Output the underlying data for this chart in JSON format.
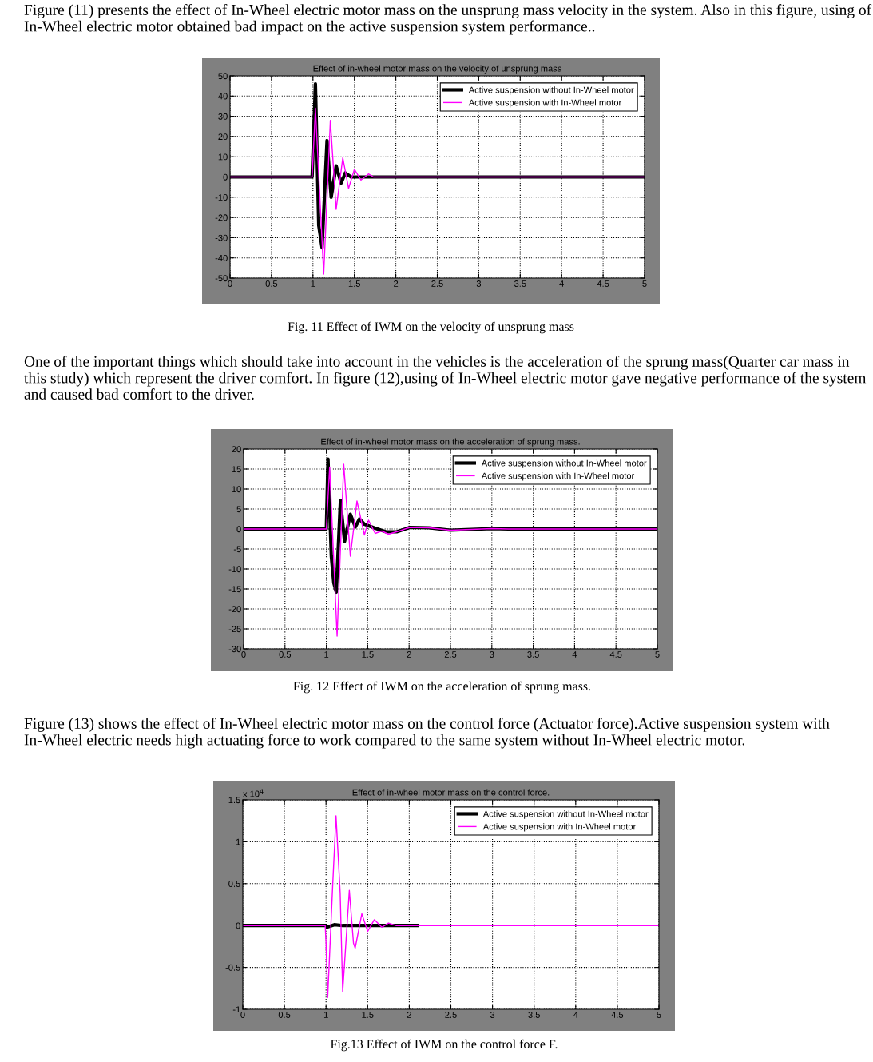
{
  "chart_data": [
    {
      "type": "line",
      "title": "Effect of in-wheel motor mass on the velocity of unsprung mass",
      "annotations": [
        "Figure (11) presents the effect of In-Wheel electric motor mass on the unsprung mass velocity in the system. Also in this figure, using of In-Wheel electric motor obtained bad impact on the active suspension system performance..",
        "Fig. 11 Effect of IWM on the velocity of unsprung mass"
      ],
      "xlim": [
        0,
        5
      ],
      "xticks": [
        0,
        0.5,
        1,
        1.5,
        2,
        2.5,
        3,
        3.5,
        4,
        4.5,
        5
      ],
      "ylim": [
        -50,
        50
      ],
      "yticks": [
        -50,
        -40,
        -30,
        -20,
        -10,
        0,
        10,
        20,
        30,
        40,
        50
      ],
      "grid": true,
      "legend": "top right",
      "line_style": "solid",
      "marker": "none",
      "series": [
        {
          "name": "Active suspension without In-Wheel motor",
          "color": "#000000",
          "x": [
            0,
            0.99,
            1.03,
            1.07,
            1.11,
            1.17,
            1.22,
            1.28,
            1.34,
            1.39,
            1.46,
            5
          ],
          "values": [
            0,
            0,
            46,
            -24,
            -35,
            18,
            -10,
            5.5,
            -3,
            2,
            0,
            0
          ]
        },
        {
          "name": "Active suspension with In-Wheel motor",
          "color": "#ff00ff",
          "x": [
            0,
            0.99,
            1.03,
            1.13,
            1.21,
            1.28,
            1.36,
            1.43,
            1.5,
            1.58,
            1.67,
            1.73,
            5
          ],
          "values": [
            0,
            0,
            34,
            -48,
            28,
            -16,
            9.5,
            -5.7,
            3.8,
            -1.5,
            1.5,
            0,
            0
          ]
        }
      ]
    },
    {
      "type": "line",
      "title": "Effect of in-wheel motor mass on the acceleration of sprung mass.",
      "annotations": [
        "One of the important things which should take into account in the vehicles is the acceleration of the sprung mass(Quarter car mass in this study) which represent the driver comfort. In figure (12),using of In-Wheel electric motor gave negative performance of the system and caused bad comfort to the driver.",
        "Fig. 12 Effect of IWM on the acceleration of sprung mass."
      ],
      "xlim": [
        0,
        5
      ],
      "xticks": [
        0,
        0.5,
        1,
        1.5,
        2,
        2.5,
        3,
        3.5,
        4,
        4.5,
        5
      ],
      "ylim": [
        -30,
        20
      ],
      "yticks": [
        -30,
        -25,
        -20,
        -15,
        -10,
        -5,
        0,
        5,
        10,
        15,
        20
      ],
      "grid": true,
      "legend": "top right",
      "line_style": "solid",
      "marker": "none",
      "series": [
        {
          "name": "Active suspension without In-Wheel motor",
          "color": "#000000",
          "x": [
            0,
            1.0,
            1.02,
            1.06,
            1.09,
            1.12,
            1.17,
            1.22,
            1.29,
            1.35,
            1.4,
            1.46,
            1.59,
            1.72,
            1.85,
            2.01,
            2.24,
            2.5,
            3.0,
            3.2,
            5
          ],
          "values": [
            0,
            0,
            17.5,
            -6.8,
            -13.5,
            -15.8,
            7.2,
            -3.1,
            3.7,
            0.5,
            2.5,
            1.2,
            0.2,
            -0.7,
            -0.7,
            0.4,
            0.3,
            -0.3,
            0.1,
            0,
            0
          ]
        },
        {
          "name": "Active suspension with In-Wheel motor",
          "color": "#ff00ff",
          "x": [
            0,
            1.0,
            1.04,
            1.13,
            1.21,
            1.29,
            1.37,
            1.46,
            1.51,
            1.59,
            1.67,
            1.75,
            1.88,
            2.01,
            2.24,
            2.5,
            3.0,
            3.2,
            5
          ],
          "values": [
            0,
            0,
            15.5,
            -26.8,
            16.2,
            -6.8,
            7,
            -1.5,
            2.2,
            -1.1,
            -0.5,
            -1.3,
            -0.5,
            0.4,
            0.3,
            -0.3,
            0.1,
            0,
            0
          ]
        }
      ]
    },
    {
      "type": "line",
      "title": "Effect of in-wheel motor mass on the control force.",
      "annotations": [
        "Figure (13) shows the effect of In-Wheel electric motor mass on the control force (Actuator force).Active suspension system with In-Wheel electric needs high actuating force to work compared to the same system without In-Wheel electric motor.",
        "Fig.13 Effect of IWM on the control force F.",
        "x 10$^{4}$"
      ],
      "xlim": [
        0,
        5
      ],
      "xticks": [
        0,
        0.5,
        1,
        1.5,
        2,
        2.5,
        3,
        3.5,
        4,
        4.5,
        5
      ],
      "ylim": [
        -1,
        1.5
      ],
      "yticks": [
        -1,
        -0.5,
        0,
        0.5,
        1,
        1.5
      ],
      "grid": true,
      "legend": "top right",
      "line_style": "solid",
      "marker": "none",
      "series": [
        {
          "name": "Active suspension without In-Wheel motor",
          "color": "#000000",
          "x": [
            0,
            1.0,
            1.01,
            1.1,
            1.2,
            2.1
          ],
          "values": [
            0,
            0,
            -0.02,
            0.01,
            0,
            0
          ]
        },
        {
          "name": "Active suspension with In-Wheel motor",
          "color": "#ff00ff",
          "x": [
            0,
            0.99,
            1.0,
            1.02,
            1.08,
            1.12,
            1.17,
            1.2,
            1.23,
            1.28,
            1.33,
            1.35,
            1.43,
            1.5,
            1.58,
            1.67,
            1.75,
            1.84,
            5
          ],
          "values": [
            0,
            0,
            -0.2,
            -0.86,
            0.48,
            1.31,
            0.39,
            -0.79,
            -0.34,
            0.42,
            -0.21,
            -0.27,
            0.14,
            -0.07,
            0.07,
            -0.02,
            0.03,
            0,
            0
          ]
        }
      ]
    }
  ]
}
